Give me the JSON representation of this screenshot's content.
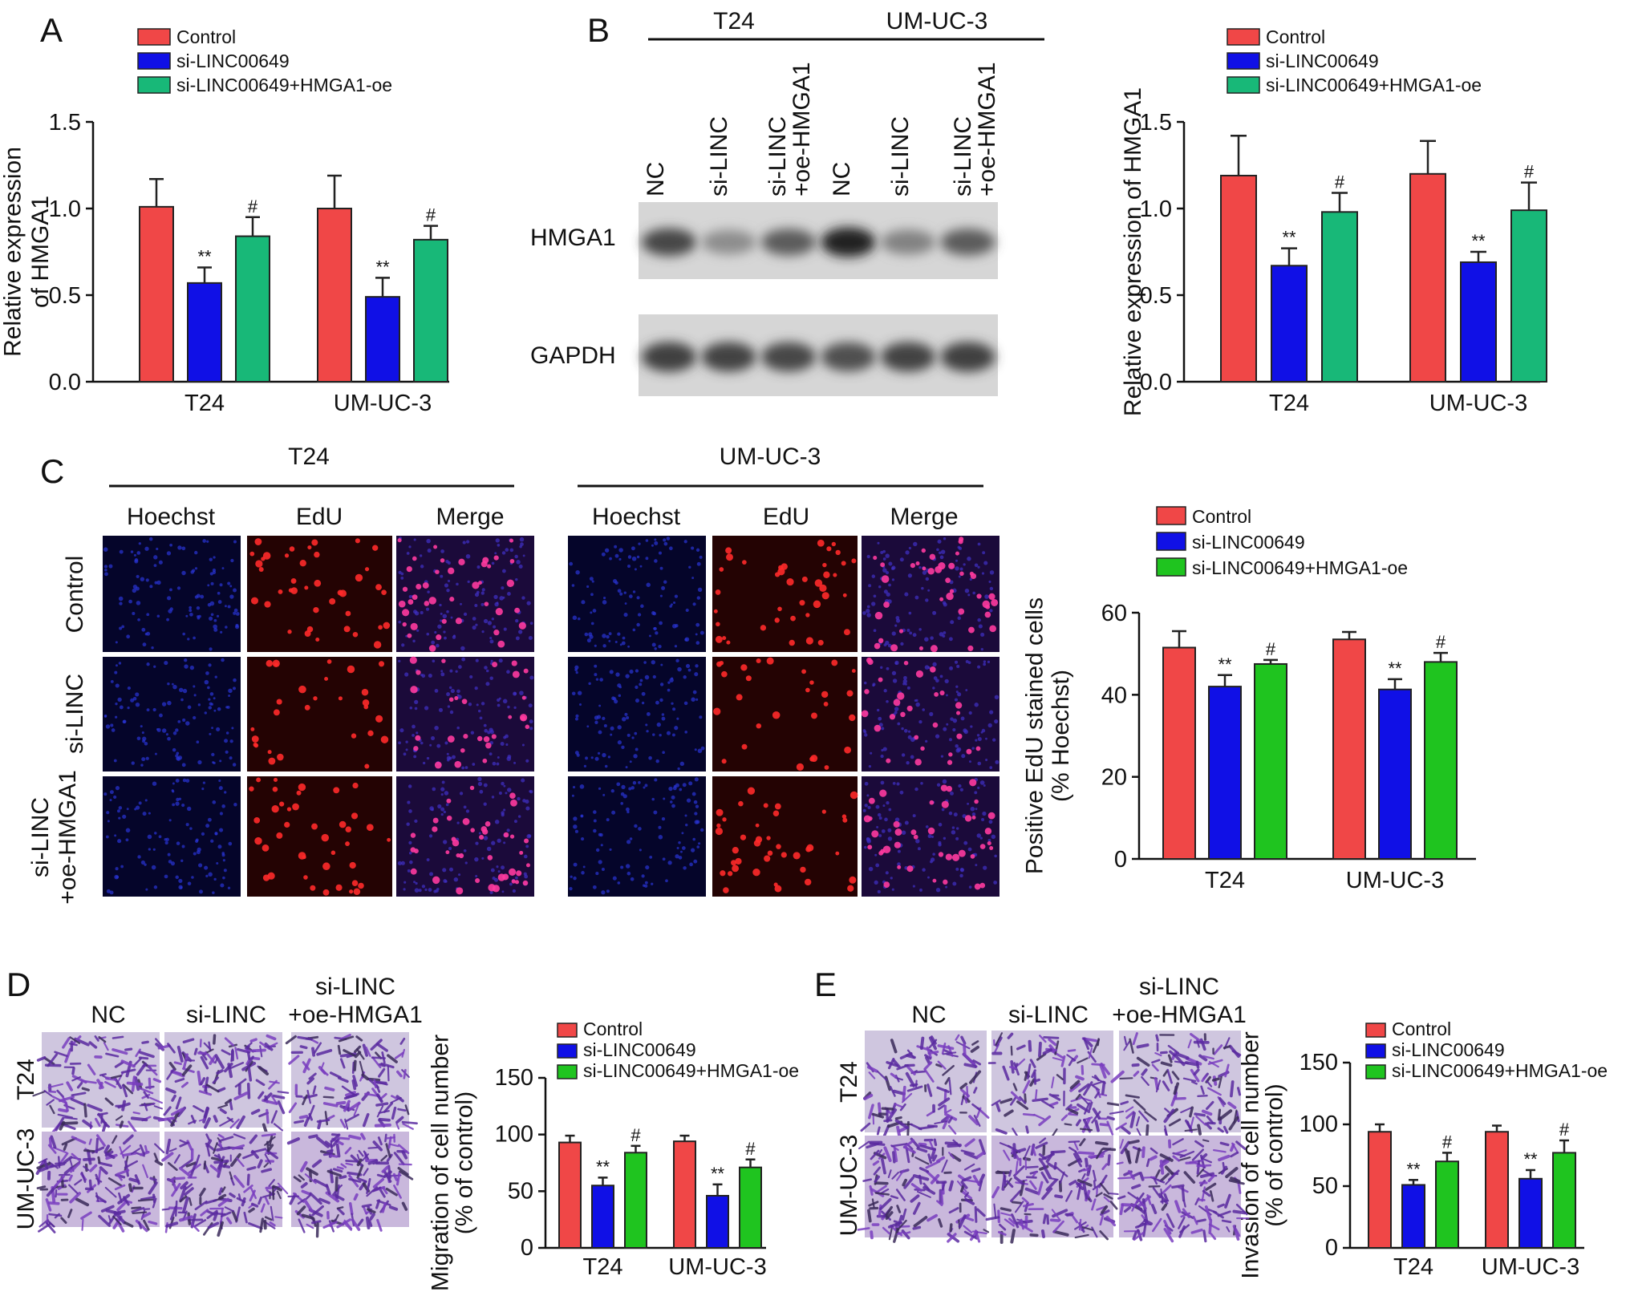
{
  "panel_labels": [
    "A",
    "B",
    "C",
    "D",
    "E"
  ],
  "colors": {
    "control": "#f04747",
    "si": "#1010e6",
    "rescue_teal": "#18b878",
    "rescue_green": "#1fc41f",
    "bar_stroke": "#222222",
    "axis": "#111111"
  },
  "legend_labels": [
    "Control",
    "si-LINC00649",
    "si-LINC00649+HMGA1-oe"
  ],
  "blot": {
    "cell_lines": [
      "T24",
      "UM-UC-3"
    ],
    "lanes": [
      "NC",
      "si-LINC",
      "si-LINC\n+oe-HMGA1",
      "NC",
      "si-LINC",
      "si-LINC\n+oe-HMGA1"
    ],
    "bands": [
      "HMGA1",
      "GAPDH"
    ],
    "hmga1_intensity": [
      0.78,
      0.45,
      0.68,
      0.95,
      0.5,
      0.68
    ],
    "gapdh_intensity": [
      0.82,
      0.8,
      0.78,
      0.74,
      0.8,
      0.82
    ]
  },
  "micro": {
    "cell_lines": [
      "T24",
      "UM-UC-3"
    ],
    "channels": [
      "Hoechst",
      "EdU",
      "Merge"
    ],
    "rows": [
      "Control",
      "si-LINC",
      "si-LINC\n+oe-HMGA1"
    ]
  },
  "transwell": {
    "columns": [
      "NC",
      "si-LINC",
      "si-LINC\n+oe-HMGA1"
    ],
    "rows": [
      "T24",
      "UM-UC-3"
    ]
  },
  "chart_data": [
    {
      "id": "A",
      "type": "bar",
      "categories": [
        "T24",
        "UM-UC-3"
      ],
      "ylabel": "Relative expression\nof HMGA1",
      "ylim": [
        0,
        1.5
      ],
      "yticks": [
        "0.0",
        "0.5",
        "1.0",
        "1.5"
      ],
      "series": [
        {
          "name": "Control",
          "values": [
            1.01,
            1.0
          ],
          "errors": [
            0.16,
            0.19
          ],
          "marks": [
            "",
            ""
          ]
        },
        {
          "name": "si-LINC00649",
          "values": [
            0.57,
            0.49
          ],
          "errors": [
            0.09,
            0.11
          ],
          "marks": [
            "**",
            "**"
          ]
        },
        {
          "name": "si-LINC00649+HMGA1-oe",
          "values": [
            0.84,
            0.82
          ],
          "errors": [
            0.11,
            0.08
          ],
          "marks": [
            "#",
            "#"
          ]
        }
      ]
    },
    {
      "id": "B",
      "type": "bar",
      "categories": [
        "T24",
        "UM-UC-3"
      ],
      "ylabel": "Relative expression of HMGA1",
      "ylim": [
        0,
        1.5
      ],
      "yticks": [
        "0.0",
        "0.5",
        "1.0",
        "1.5"
      ],
      "series": [
        {
          "name": "Control",
          "values": [
            1.19,
            1.2
          ],
          "errors": [
            0.23,
            0.19
          ],
          "marks": [
            "",
            ""
          ]
        },
        {
          "name": "si-LINC00649",
          "values": [
            0.67,
            0.69
          ],
          "errors": [
            0.1,
            0.06
          ],
          "marks": [
            "**",
            "**"
          ]
        },
        {
          "name": "si-LINC00649+HMGA1-oe",
          "values": [
            0.98,
            0.99
          ],
          "errors": [
            0.11,
            0.16
          ],
          "marks": [
            "#",
            "#"
          ]
        }
      ]
    },
    {
      "id": "C",
      "type": "bar",
      "categories": [
        "T24",
        "UM-UC-3"
      ],
      "ylabel": "Positive EdU stained cells\n(% Hoechst)",
      "ylim": [
        0,
        60
      ],
      "yticks": [
        "0",
        "20",
        "40",
        "60"
      ],
      "series": [
        {
          "name": "Control",
          "values": [
            51.5,
            53.5
          ],
          "errors": [
            4.0,
            1.8
          ],
          "marks": [
            "",
            ""
          ]
        },
        {
          "name": "si-LINC00649",
          "values": [
            42.0,
            41.3
          ],
          "errors": [
            2.8,
            2.5
          ],
          "marks": [
            "**",
            "**"
          ]
        },
        {
          "name": "si-LINC00649+HMGA1-oe",
          "values": [
            47.5,
            48.0
          ],
          "errors": [
            1.0,
            2.2
          ],
          "marks": [
            "#",
            "#"
          ]
        }
      ]
    },
    {
      "id": "D",
      "type": "bar",
      "categories": [
        "T24",
        "UM-UC-3"
      ],
      "ylabel": "Migration of cell number\n(% of control)",
      "ylim": [
        0,
        150
      ],
      "yticks": [
        "0",
        "50",
        "100",
        "150"
      ],
      "series": [
        {
          "name": "Control",
          "values": [
            93,
            94
          ],
          "errors": [
            6,
            5
          ],
          "marks": [
            "",
            ""
          ]
        },
        {
          "name": "si-LINC00649",
          "values": [
            55,
            46
          ],
          "errors": [
            7,
            10
          ],
          "marks": [
            "**",
            "**"
          ]
        },
        {
          "name": "si-LINC00649+HMGA1-oe",
          "values": [
            84,
            71
          ],
          "errors": [
            6,
            7
          ],
          "marks": [
            "#",
            "#"
          ]
        }
      ]
    },
    {
      "id": "E",
      "type": "bar",
      "categories": [
        "T24",
        "UM-UC-3"
      ],
      "ylabel": "Invasion of cell number\n(% of control)",
      "ylim": [
        0,
        150
      ],
      "yticks": [
        "0",
        "50",
        "100",
        "150"
      ],
      "series": [
        {
          "name": "Control",
          "values": [
            94,
            94
          ],
          "errors": [
            6,
            5
          ],
          "marks": [
            "",
            ""
          ]
        },
        {
          "name": "si-LINC00649",
          "values": [
            51,
            56
          ],
          "errors": [
            4,
            7
          ],
          "marks": [
            "**",
            "**"
          ]
        },
        {
          "name": "si-LINC00649+HMGA1-oe",
          "values": [
            70,
            77
          ],
          "errors": [
            7,
            10
          ],
          "marks": [
            "#",
            "#"
          ]
        }
      ]
    }
  ]
}
